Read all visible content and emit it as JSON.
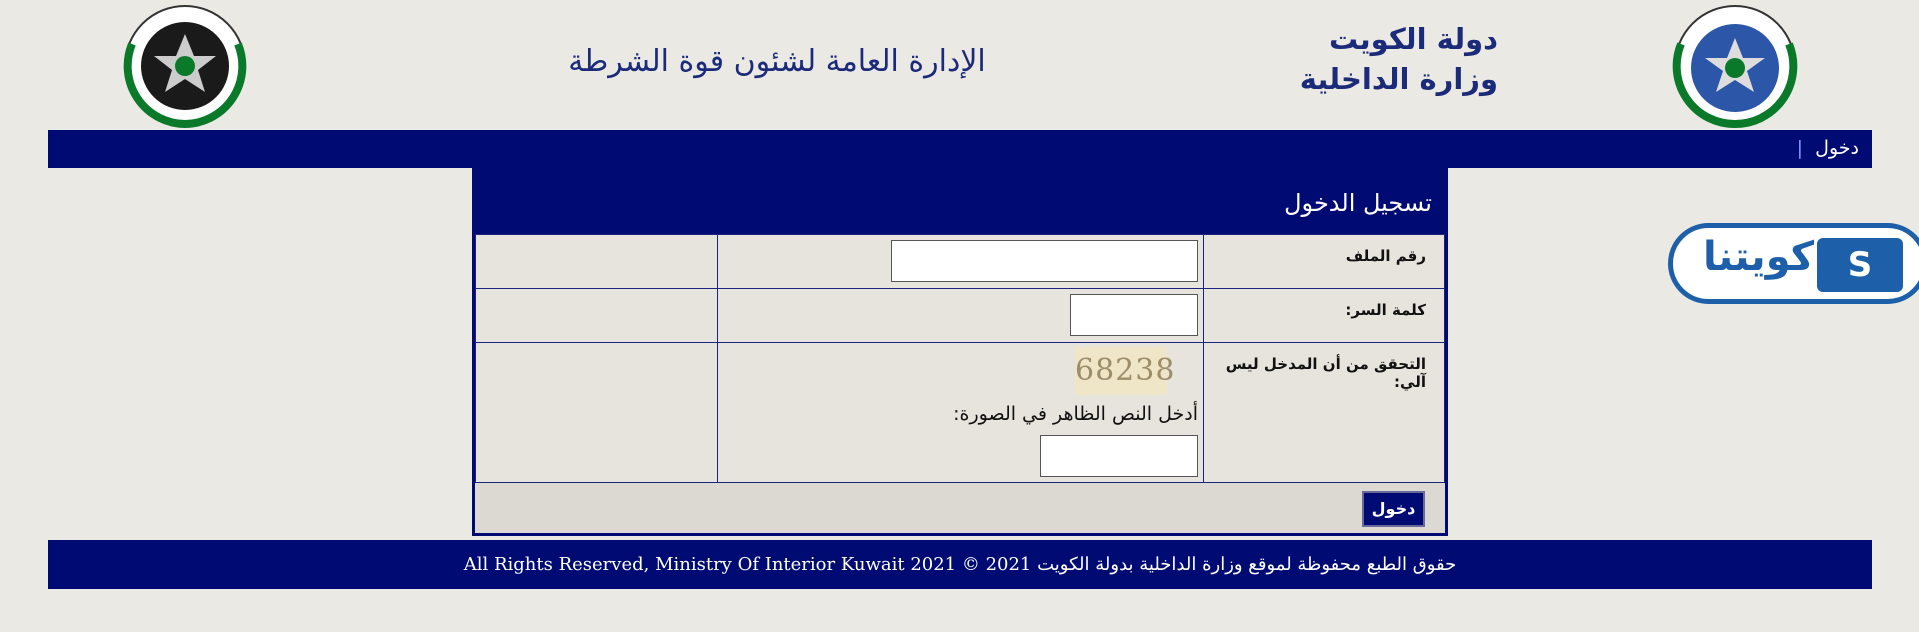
{
  "header": {
    "title": "الإدارة العامة لشئون قوة الشرطة",
    "country": "دولة الكويت",
    "ministry": "وزارة الداخلية"
  },
  "nav": {
    "login": "دخول",
    "separator": "|"
  },
  "form": {
    "title": "تسجيل الدخول",
    "file_number_label": "رقم الملف",
    "password_label": "كلمة السر:",
    "captcha_label": "التحقق من أن المدخل ليس آلي:",
    "captcha_image_text": "68238",
    "captcha_hint": "أدخل النص الظاهر في الصورة:",
    "submit": "دخول"
  },
  "side_logo": {
    "text": "كويتنا"
  },
  "footer": {
    "text": "All Rights Reserved, Ministry Of Interior Kuwait 2021 © حقوق الطبع محفوظة لموقع وزارة الداخلية بدولة الكويت 2021"
  }
}
